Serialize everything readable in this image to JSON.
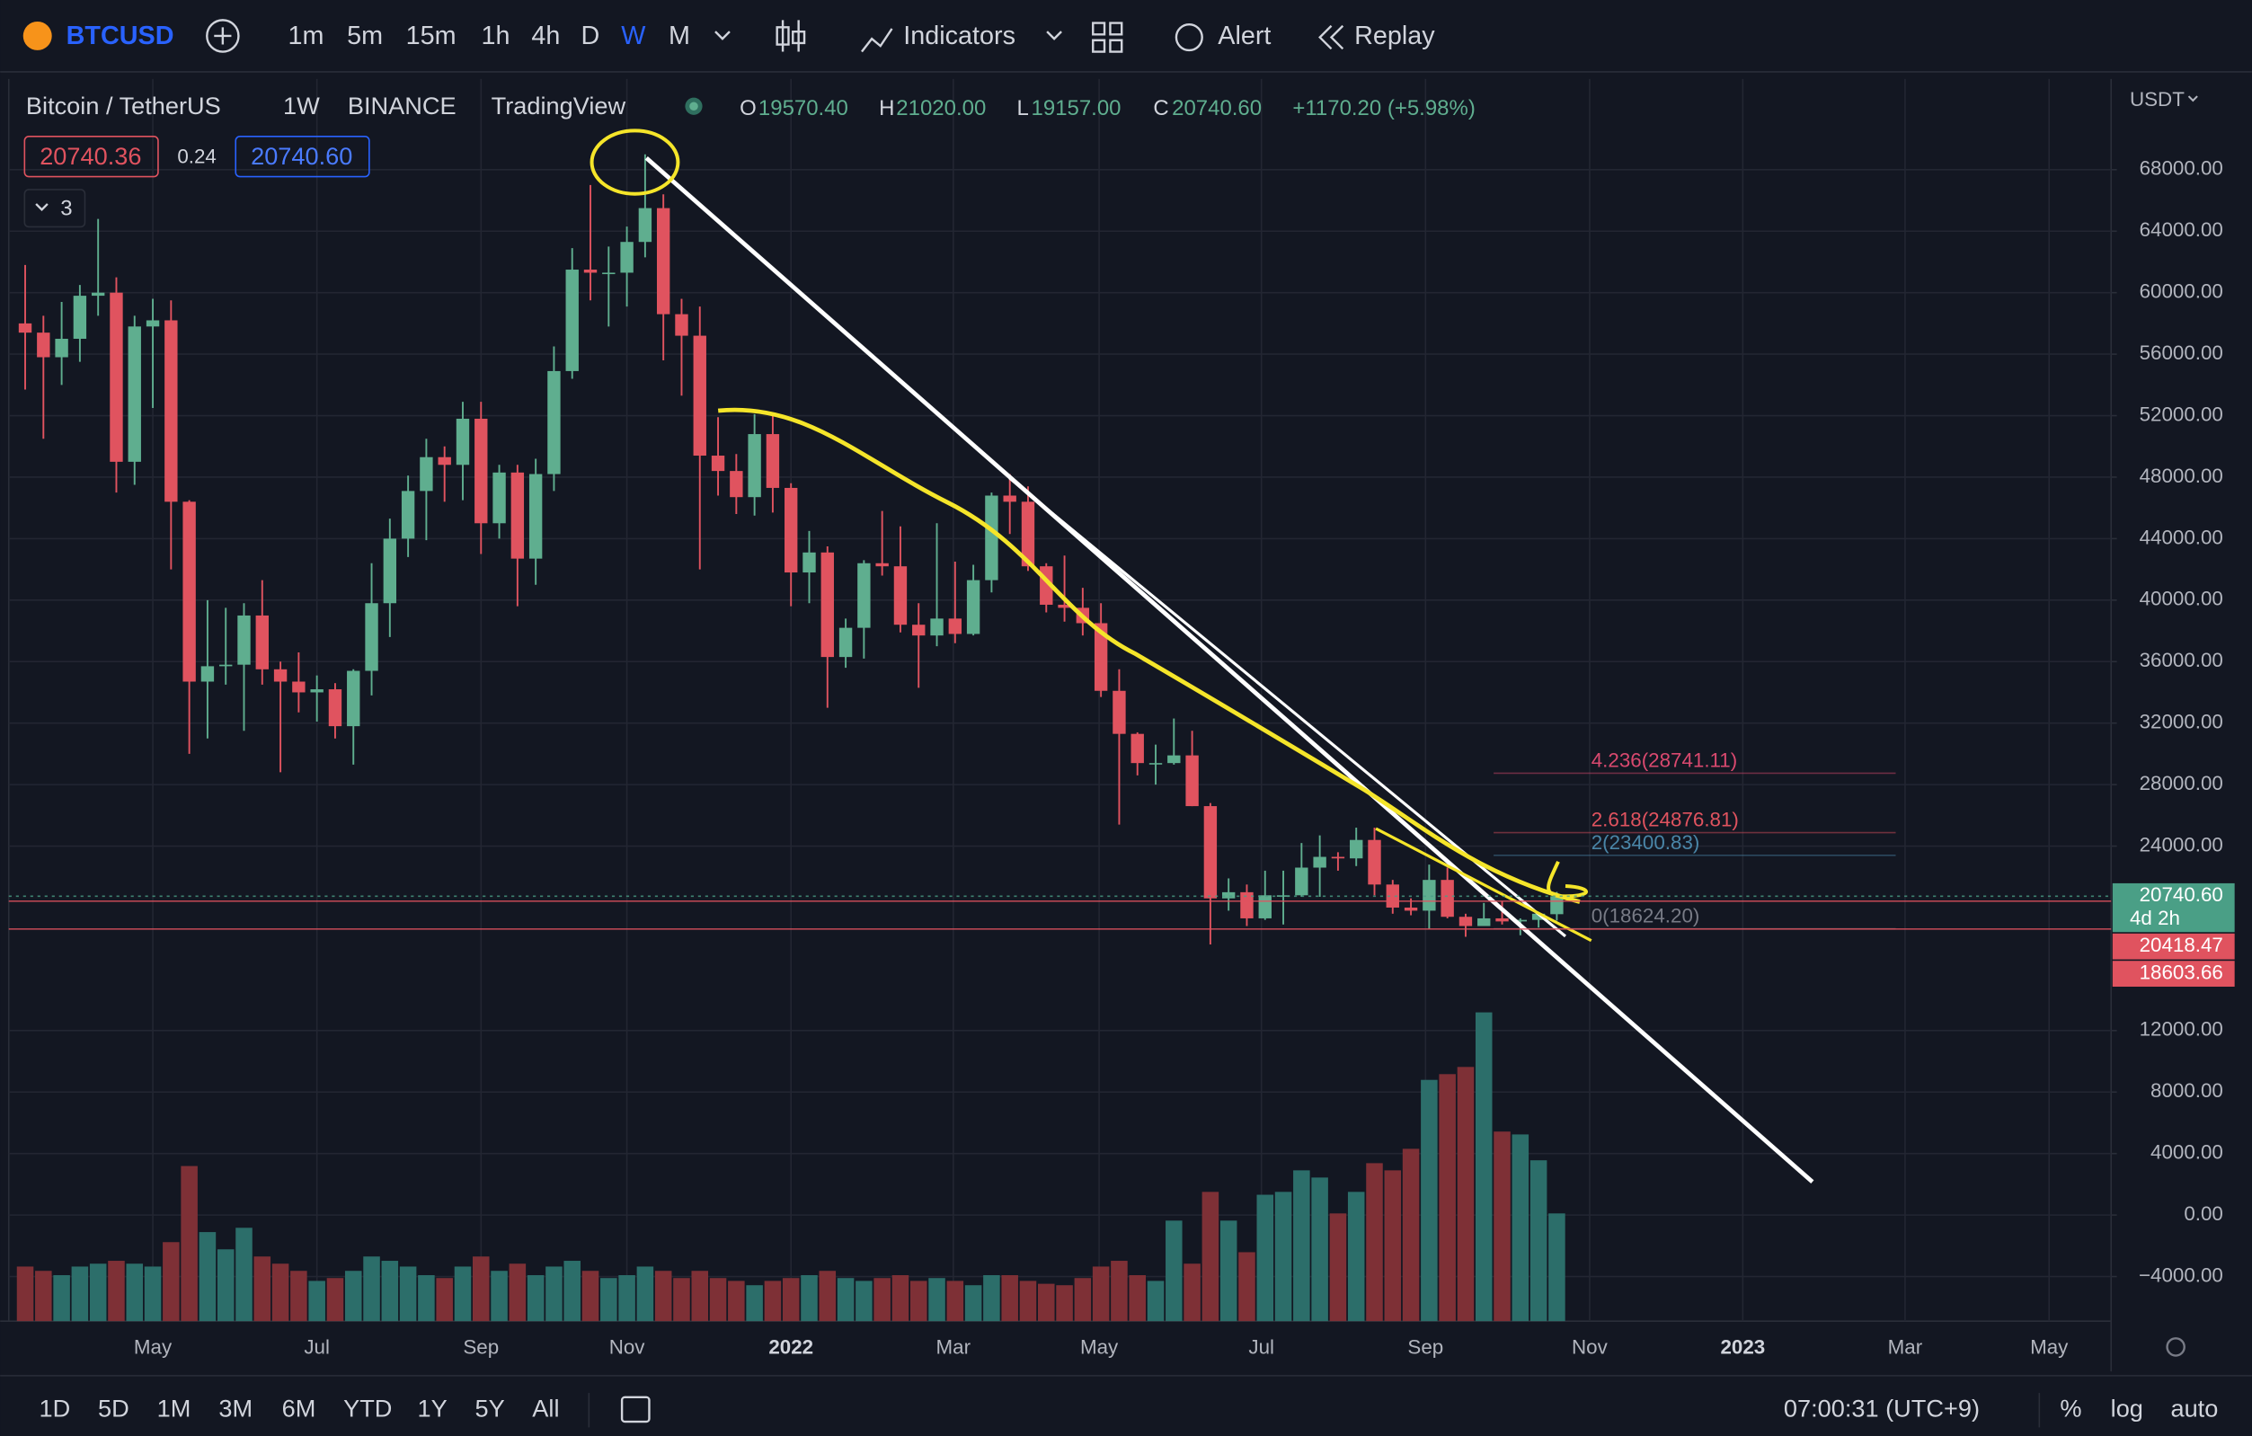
{
  "toolbar": {
    "symbol": "BTCUSD",
    "intervals": [
      "1m",
      "5m",
      "15m",
      "1h",
      "4h",
      "D",
      "W",
      "M"
    ],
    "indicators": "Indicators",
    "alert": "Alert",
    "replay": "Replay"
  },
  "legend": {
    "name": "Bitcoin / TetherUS",
    "interval": "1W",
    "exchange": "BINANCE",
    "source": "TradingView",
    "o_key": "O",
    "o": "19570.40",
    "h_key": "H",
    "h": "21020.00",
    "l_key": "L",
    "l": "19157.00",
    "c_key": "C",
    "c": "20740.60",
    "change": "+1170.20 (+5.98%)",
    "bid": "20740.36",
    "spread": "0.24",
    "ask": "20740.60",
    "indicator_count": "3"
  },
  "currency": "USDT",
  "bottom_bar": {
    "ranges": [
      "1D",
      "5D",
      "1M",
      "3M",
      "6M",
      "YTD",
      "1Y",
      "5Y",
      "All"
    ],
    "clock": "07:00:31 (UTC+9)",
    "percent": "%",
    "log": "log",
    "auto": "auto"
  },
  "chart_data": {
    "type": "candlestick",
    "open": [
      58000,
      57400,
      55800,
      57000,
      59800,
      60000,
      49000,
      57800,
      58200,
      46400,
      34700,
      35700,
      35800,
      39000,
      35500,
      34700,
      34000,
      34200,
      31800,
      35400,
      39800,
      44000,
      47100,
      49300,
      48800,
      51800,
      45000,
      48300,
      42700,
      48200,
      54900,
      61500,
      61300,
      61300,
      63300,
      65500,
      58600,
      57200,
      49400,
      48400,
      46700,
      50800,
      47300,
      41800,
      43100,
      36300,
      38200,
      42400,
      42200,
      38400,
      37700,
      38800,
      37800,
      41300,
      46800,
      46400,
      42200,
      39700,
      39500,
      38500,
      34100,
      31300,
      29400,
      29400,
      29900,
      26600,
      20600,
      21000,
      19300,
      20800,
      20800,
      22600,
      23300,
      23200,
      24400,
      21500,
      20000,
      19800,
      21800,
      19400,
      18800,
      19300,
      19100,
      19200,
      19570.4
    ],
    "high": [
      61800,
      58500,
      59400,
      60500,
      64800,
      61000,
      58500,
      59600,
      59500,
      46500,
      40000,
      39500,
      39800,
      41300,
      36000,
      36600,
      35100,
      34600,
      35500,
      42400,
      45300,
      48100,
      50500,
      50000,
      52900,
      52900,
      48800,
      48800,
      49200,
      56500,
      62900,
      67000,
      63000,
      64300,
      69000,
      66400,
      59600,
      59100,
      51900,
      49500,
      52100,
      52100,
      47600,
      44500,
      43500,
      38800,
      42600,
      45800,
      44800,
      39800,
      45000,
      42500,
      42300,
      47000,
      48200,
      47400,
      42400,
      42900,
      40800,
      39800,
      35500,
      31400,
      30600,
      32300,
      31500,
      26800,
      21900,
      21500,
      22400,
      22400,
      24200,
      24700,
      23600,
      25200,
      25200,
      21800,
      20600,
      22800,
      22600,
      19600,
      20300,
      20400,
      19300,
      19700,
      21020
    ],
    "low": [
      53700,
      50500,
      54000,
      55500,
      58500,
      47000,
      47500,
      52500,
      42000,
      30000,
      31000,
      34500,
      31500,
      34500,
      28800,
      32700,
      32100,
      31000,
      29300,
      33800,
      37600,
      42800,
      43900,
      46400,
      46500,
      43000,
      44000,
      39600,
      41000,
      47100,
      54400,
      59500,
      57800,
      59100,
      62300,
      55600,
      53300,
      42000,
      46800,
      45600,
      45500,
      45700,
      39600,
      39800,
      33000,
      35600,
      36200,
      41600,
      37900,
      34300,
      37000,
      37200,
      37700,
      40500,
      44300,
      41900,
      39200,
      38600,
      37700,
      33700,
      25400,
      28600,
      28000,
      29300,
      26600,
      17600,
      19800,
      18800,
      19200,
      18900,
      20700,
      20700,
      22400,
      22700,
      20800,
      19600,
      19500,
      18600,
      19300,
      18100,
      18800,
      18900,
      18200,
      18700,
      19157
    ],
    "close": [
      57400,
      55800,
      57000,
      59800,
      60000,
      49000,
      57800,
      58200,
      46400,
      34700,
      35700,
      35800,
      39000,
      35500,
      34700,
      34000,
      34200,
      31800,
      35400,
      39800,
      44000,
      47100,
      49300,
      48800,
      51800,
      45000,
      48300,
      42700,
      48200,
      54900,
      61500,
      61300,
      61300,
      63300,
      65500,
      58600,
      57200,
      49400,
      48400,
      46700,
      50800,
      47300,
      41800,
      43100,
      36300,
      38200,
      42400,
      42200,
      38400,
      37700,
      38800,
      37800,
      41300,
      46800,
      46400,
      42200,
      39700,
      39500,
      38500,
      34100,
      31300,
      29400,
      29400,
      29900,
      26600,
      20600,
      21000,
      19300,
      20800,
      20800,
      22600,
      23300,
      23200,
      24400,
      21500,
      20000,
      19800,
      21800,
      19400,
      18800,
      19300,
      19100,
      19200,
      19600,
      20740.6
    ],
    "volume": [
      38,
      35,
      32,
      38,
      40,
      42,
      40,
      38,
      55,
      108,
      62,
      50,
      65,
      45,
      40,
      35,
      28,
      30,
      35,
      45,
      42,
      38,
      32,
      30,
      38,
      45,
      35,
      40,
      32,
      38,
      42,
      35,
      30,
      32,
      38,
      35,
      30,
      35,
      30,
      28,
      25,
      28,
      30,
      32,
      35,
      30,
      28,
      30,
      32,
      28,
      30,
      28,
      25,
      32,
      32,
      28,
      26,
      25,
      30,
      38,
      42,
      32,
      28,
      70,
      40,
      90,
      70,
      48,
      88,
      90,
      105,
      100,
      75,
      90,
      110,
      105,
      120,
      168,
      172,
      177,
      215,
      132,
      130,
      112,
      75
    ],
    "up_color": "#5fae8f",
    "down_color": "#e0535f",
    "volume_up_color": "#2c6e6a",
    "volume_down_color": "#7e3036",
    "xlim": [
      -0.9,
      114.4
    ],
    "xticks": [
      {
        "value": 7,
        "label": "May"
      },
      {
        "value": 16,
        "label": "Jul"
      },
      {
        "value": 25,
        "label": "Sep"
      },
      {
        "value": 33,
        "label": "Nov"
      },
      {
        "value": 42,
        "label": "2022"
      },
      {
        "value": 50.9,
        "label": "Mar"
      },
      {
        "value": 58.9,
        "label": "May"
      },
      {
        "value": 67.8,
        "label": "Jul"
      },
      {
        "value": 76.8,
        "label": "Sep"
      },
      {
        "value": 85.8,
        "label": "Nov"
      },
      {
        "value": 94.2,
        "label": "2023"
      },
      {
        "value": 103.1,
        "label": "Mar"
      },
      {
        "value": 111,
        "label": "May"
      }
    ],
    "ylim": [
      -6900,
      73900
    ],
    "yticks": [
      {
        "value": 68000,
        "label": "68000.00"
      },
      {
        "value": 64000,
        "label": "64000.00"
      },
      {
        "value": 60000,
        "label": "60000.00"
      },
      {
        "value": 56000,
        "label": "56000.00"
      },
      {
        "value": 52000,
        "label": "52000.00"
      },
      {
        "value": 48000,
        "label": "48000.00"
      },
      {
        "value": 44000,
        "label": "44000.00"
      },
      {
        "value": 40000,
        "label": "40000.00"
      },
      {
        "value": 36000,
        "label": "36000.00"
      },
      {
        "value": 32000,
        "label": "32000.00"
      },
      {
        "value": 28000,
        "label": "28000.00"
      },
      {
        "value": 24000,
        "label": "24000.00"
      },
      {
        "value": 12000,
        "label": "12000.00"
      },
      {
        "value": 8000,
        "label": "8000.00"
      },
      {
        "value": 4000,
        "label": "4000.00"
      },
      {
        "value": 0,
        "label": "0.00"
      },
      {
        "value": -4000,
        "label": "−4000.00"
      }
    ],
    "grid": true,
    "fib_levels": [
      {
        "value": 28741.11,
        "label": "4.236(28741.11)",
        "color": "#d9496f"
      },
      {
        "value": 24876.81,
        "label": "2.618(24876.81)",
        "color": "#e0535f"
      },
      {
        "value": 23400.83,
        "label": "2(23400.83)",
        "color": "#4a86a8"
      },
      {
        "value": 18624.2,
        "label": "0(18624.20)",
        "color": "#787b86"
      }
    ],
    "price_markers": [
      {
        "value": 20740.6,
        "label": "20740.60",
        "color": "#4a9f86",
        "countdown": "4d 2h"
      },
      {
        "value": 20418.47,
        "label": "20418.47",
        "color": "#e0535f"
      },
      {
        "value": 18603.66,
        "label": "18603.66",
        "color": "#e0535f"
      }
    ]
  }
}
